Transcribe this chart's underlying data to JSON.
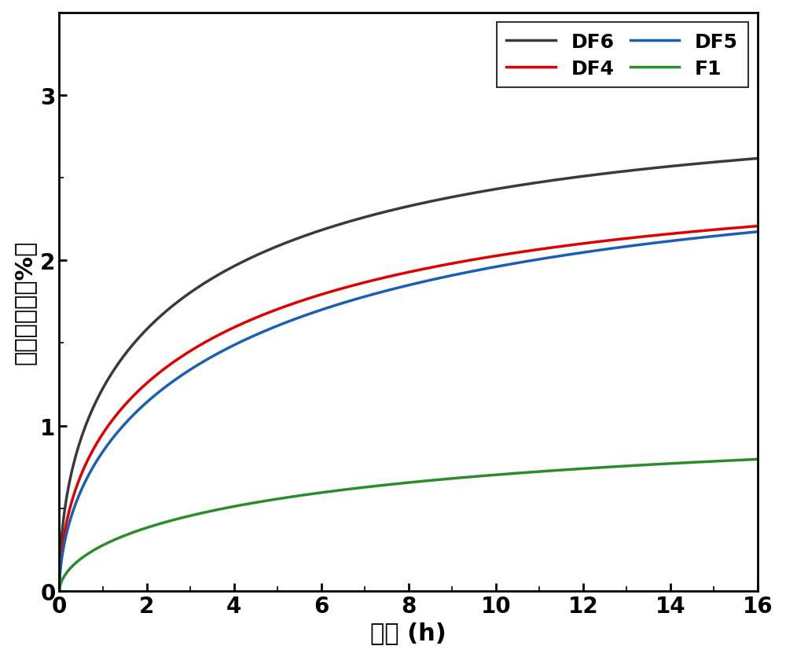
{
  "title": "",
  "xlabel": "时间 (h)",
  "ylabel": "线性膨胀率（%）",
  "xlim": [
    0,
    16
  ],
  "ylim": [
    0,
    3.5
  ],
  "xticks": [
    0,
    2,
    4,
    6,
    8,
    10,
    12,
    14,
    16
  ],
  "yticks": [
    0,
    1,
    2,
    3
  ],
  "curves": [
    {
      "label": "DF6",
      "color": "#3a3a3a",
      "A": 2.9,
      "b": 0.55,
      "p": 0.52
    },
    {
      "label": "DF4",
      "color": "#e00000",
      "A": 2.5,
      "b": 0.48,
      "p": 0.54
    },
    {
      "label": "DF5",
      "color": "#1a5fb4",
      "A": 2.56,
      "b": 0.4,
      "p": 0.56
    },
    {
      "label": "F1",
      "color": "#2a8c2a",
      "A": 1.01,
      "b": 0.32,
      "p": 0.57
    }
  ],
  "linewidth": 2.5,
  "font_size_ticks": 20,
  "font_size_labels": 22,
  "font_size_legend": 18,
  "background_color": "#ffffff",
  "legend_ncol": 2,
  "legend_order": [
    "DF6",
    "DF4",
    "DF5",
    "F1"
  ]
}
